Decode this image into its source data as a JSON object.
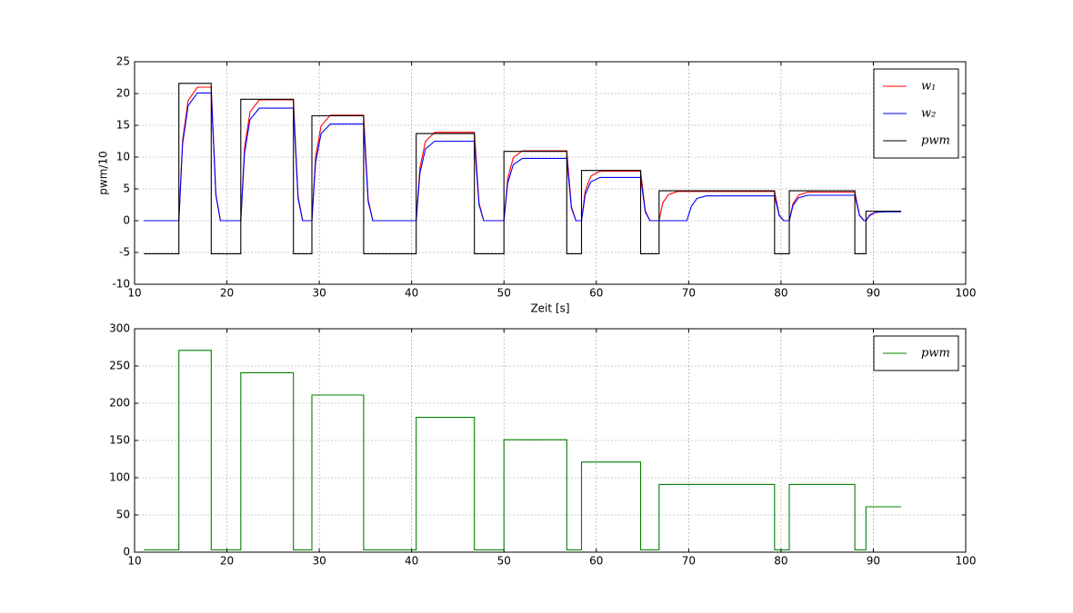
{
  "chart_data": [
    {
      "type": "line",
      "xlabel": "Zeit [s]",
      "ylabel": "pwm/10",
      "xlim": [
        10,
        100
      ],
      "ylim": [
        -10,
        25
      ],
      "xticks": [
        10,
        20,
        30,
        40,
        50,
        60,
        70,
        80,
        90,
        100
      ],
      "yticks": [
        -10,
        -5,
        0,
        5,
        10,
        15,
        20,
        25
      ],
      "grid": true,
      "legend": "upper right",
      "series": [
        {
          "name": "w₁",
          "color": "#ff0000",
          "x": [
            11,
            14.8,
            15.2,
            15.8,
            16.8,
            18.3,
            18.8,
            19.3,
            21.5,
            21.9,
            22.5,
            23.5,
            27.2,
            27.7,
            28.2,
            29.2,
            29.6,
            30.2,
            31.2,
            34.8,
            35.3,
            35.8,
            40.5,
            40.9,
            41.5,
            42.5,
            46.8,
            47.3,
            47.8,
            50,
            50.4,
            51,
            52,
            56.8,
            57.3,
            57.8,
            58.4,
            58.8,
            59.4,
            60.4,
            64.8,
            65.3,
            65.8,
            66.8,
            67.2,
            67.8,
            68.8,
            79.3,
            79.8,
            80.3,
            80.9,
            81.3,
            81.9,
            82.9,
            88,
            88.5,
            89,
            89.2,
            89.6,
            90.2,
            91.2,
            93
          ],
          "values": [
            0,
            0,
            12.6,
            18.9,
            21,
            21,
            4.2,
            0,
            0,
            11.4,
            17.1,
            19,
            19,
            3.8,
            0,
            0,
            10,
            14.9,
            16.6,
            16.6,
            3.3,
            0,
            0,
            8.3,
            12.5,
            13.9,
            13.9,
            2.8,
            0,
            0,
            6.6,
            9.9,
            11,
            11,
            2.2,
            0,
            0,
            4.7,
            7,
            7.8,
            7.8,
            1.6,
            0,
            0,
            2.8,
            4.1,
            4.6,
            4.6,
            0.9,
            0,
            0,
            2.7,
            4,
            4.5,
            4.5,
            0.9,
            0,
            0,
            0.9,
            1.35,
            1.5,
            1.5
          ]
        },
        {
          "name": "w₂",
          "color": "#0000ff",
          "x": [
            11,
            14.8,
            15.2,
            15.8,
            16.8,
            18.3,
            18.8,
            19.3,
            21.5,
            21.9,
            22.5,
            23.5,
            27.2,
            27.7,
            28.2,
            29.2,
            29.6,
            30.2,
            31.2,
            34.8,
            35.3,
            35.8,
            40.5,
            40.9,
            41.5,
            42.5,
            46.8,
            47.3,
            47.8,
            50,
            50.4,
            51,
            52,
            56.8,
            57.3,
            57.8,
            58.4,
            58.8,
            59.4,
            60.4,
            64.8,
            65.3,
            65.8,
            69.8,
            70.3,
            70.9,
            71.9,
            79.3,
            79.8,
            80.3,
            80.9,
            81.3,
            81.9,
            82.9,
            88,
            88.5,
            89,
            89.2,
            89.6,
            90.2,
            91.2,
            93
          ],
          "values": [
            0,
            0,
            12.1,
            18.1,
            20.1,
            20.1,
            4,
            0,
            0,
            10.6,
            15.9,
            17.7,
            17.7,
            3.5,
            0,
            0,
            9.1,
            13.7,
            15.2,
            15.2,
            3,
            0,
            0,
            7.5,
            11.3,
            12.5,
            12.5,
            2.5,
            0,
            0,
            5.9,
            8.8,
            9.8,
            9.8,
            2,
            0,
            0,
            4.1,
            6.1,
            6.8,
            6.8,
            1.4,
            0,
            0,
            2.3,
            3.5,
            3.9,
            3.9,
            0.8,
            0,
            0,
            2.4,
            3.6,
            4,
            4,
            0.8,
            0,
            0,
            0.8,
            1.3,
            1.4,
            1.4
          ]
        },
        {
          "name": "pwm",
          "color": "#000000",
          "x": [
            11,
            14.8,
            14.8,
            18.3,
            18.3,
            21.5,
            21.5,
            27.2,
            27.2,
            29.2,
            29.2,
            34.8,
            34.8,
            40.5,
            40.5,
            46.8,
            46.8,
            50,
            50,
            56.8,
            56.8,
            58.4,
            58.4,
            64.8,
            64.8,
            66.8,
            66.8,
            79.3,
            79.3,
            80.9,
            80.9,
            88,
            88,
            89.2,
            89.2,
            93
          ],
          "values": [
            -5.2,
            -5.2,
            21.6,
            21.6,
            -5.2,
            -5.2,
            19.1,
            19.1,
            -5.2,
            -5.2,
            16.5,
            16.5,
            -5.2,
            -5.2,
            13.7,
            13.7,
            -5.2,
            -5.2,
            10.9,
            10.9,
            -5.2,
            -5.2,
            7.9,
            7.9,
            -5.2,
            -5.2,
            4.7,
            4.7,
            -5.2,
            -5.2,
            4.7,
            4.7,
            -5.2,
            -5.2,
            1.5,
            1.5
          ]
        }
      ]
    },
    {
      "type": "line",
      "xlim": [
        10,
        100
      ],
      "ylim": [
        0,
        300
      ],
      "xticks": [
        10,
        20,
        30,
        40,
        50,
        60,
        70,
        80,
        90,
        100
      ],
      "yticks": [
        0,
        50,
        100,
        150,
        200,
        250,
        300
      ],
      "grid": true,
      "legend": "upper right",
      "series": [
        {
          "name": "pwm",
          "color": "#008000",
          "x": [
            11,
            14.8,
            14.8,
            18.3,
            18.3,
            21.5,
            21.5,
            27.2,
            27.2,
            29.2,
            29.2,
            34.8,
            34.8,
            40.5,
            40.5,
            46.8,
            46.8,
            50,
            50,
            56.8,
            56.8,
            58.4,
            58.4,
            64.8,
            64.8,
            66.8,
            66.8,
            79.3,
            79.3,
            80.9,
            80.9,
            88,
            88,
            89.2,
            89.2,
            93
          ],
          "values": [
            3,
            3,
            271,
            271,
            3,
            3,
            241,
            241,
            3,
            3,
            211,
            211,
            3,
            3,
            181,
            181,
            3,
            3,
            151,
            151,
            3,
            3,
            121,
            121,
            3,
            3,
            91,
            91,
            3,
            3,
            91,
            91,
            3,
            3,
            61,
            61
          ]
        }
      ]
    }
  ]
}
